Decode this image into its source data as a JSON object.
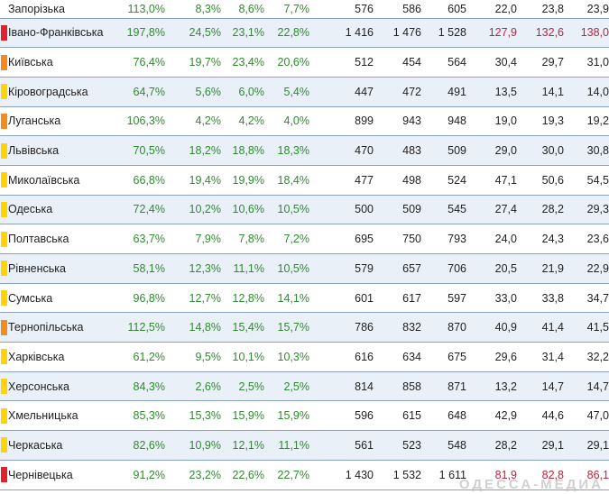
{
  "colors": {
    "red": "#e0202a",
    "orange": "#f28c1e",
    "yellow": "#ffd400"
  },
  "rows": [
    {
      "name": "Запорізька",
      "marker": "",
      "c1": "113,0%",
      "c2": "8,3%",
      "c3": "8,6%",
      "c4": "7,7%",
      "c5": "576",
      "c6": "586",
      "c7": "605",
      "c8": "22,0",
      "c9": "23,8",
      "c10": "23,9",
      "red": false
    },
    {
      "name": "Івано-Франківська",
      "marker": "red",
      "c1": "197,8%",
      "c2": "24,5%",
      "c3": "23,1%",
      "c4": "22,8%",
      "c5": "1 416",
      "c6": "1 476",
      "c7": "1 528",
      "c8": "127,9",
      "c9": "132,6",
      "c10": "138,0",
      "red": true
    },
    {
      "name": "Київська",
      "marker": "orange",
      "c1": "76,4%",
      "c2": "19,7%",
      "c3": "23,4%",
      "c4": "20,6%",
      "c5": "512",
      "c6": "454",
      "c7": "564",
      "c8": "30,4",
      "c9": "29,7",
      "c10": "31,0",
      "red": false
    },
    {
      "name": "Кіровоградська",
      "marker": "yellow",
      "c1": "64,7%",
      "c2": "5,6%",
      "c3": "6,0%",
      "c4": "5,4%",
      "c5": "447",
      "c6": "472",
      "c7": "491",
      "c8": "13,5",
      "c9": "14,1",
      "c10": "14,0",
      "red": false
    },
    {
      "name": "Луганська",
      "marker": "orange",
      "c1": "106,3%",
      "c2": "4,2%",
      "c3": "4,2%",
      "c4": "4,0%",
      "c5": "899",
      "c6": "943",
      "c7": "948",
      "c8": "19,0",
      "c9": "19,3",
      "c10": "19,2",
      "red": false
    },
    {
      "name": "Львівська",
      "marker": "yellow",
      "c1": "70,5%",
      "c2": "18,2%",
      "c3": "18,8%",
      "c4": "18,3%",
      "c5": "470",
      "c6": "483",
      "c7": "509",
      "c8": "29,0",
      "c9": "30,0",
      "c10": "30,8",
      "red": false
    },
    {
      "name": "Миколаївська",
      "marker": "yellow",
      "c1": "66,8%",
      "c2": "19,4%",
      "c3": "19,9%",
      "c4": "18,4%",
      "c5": "477",
      "c6": "498",
      "c7": "524",
      "c8": "47,1",
      "c9": "50,6",
      "c10": "54,5",
      "red": false
    },
    {
      "name": "Одеська",
      "marker": "yellow",
      "c1": "72,4%",
      "c2": "10,2%",
      "c3": "10,6%",
      "c4": "10,5%",
      "c5": "500",
      "c6": "509",
      "c7": "545",
      "c8": "27,4",
      "c9": "28,2",
      "c10": "29,3",
      "red": false
    },
    {
      "name": "Полтавська",
      "marker": "yellow",
      "c1": "63,7%",
      "c2": "7,9%",
      "c3": "7,8%",
      "c4": "7,2%",
      "c5": "695",
      "c6": "750",
      "c7": "793",
      "c8": "24,0",
      "c9": "24,3",
      "c10": "23,6",
      "red": false
    },
    {
      "name": "Рівненська",
      "marker": "yellow",
      "c1": "58,1%",
      "c2": "12,3%",
      "c3": "11,1%",
      "c4": "10,5%",
      "c5": "579",
      "c6": "657",
      "c7": "706",
      "c8": "20,5",
      "c9": "21,9",
      "c10": "22,9",
      "red": false
    },
    {
      "name": "Сумська",
      "marker": "yellow",
      "c1": "96,8%",
      "c2": "12,7%",
      "c3": "12,8%",
      "c4": "14,1%",
      "c5": "601",
      "c6": "617",
      "c7": "597",
      "c8": "33,0",
      "c9": "33,8",
      "c10": "34,7",
      "red": false
    },
    {
      "name": "Тернопільська",
      "marker": "orange",
      "c1": "112,5%",
      "c2": "14,8%",
      "c3": "15,4%",
      "c4": "15,7%",
      "c5": "786",
      "c6": "832",
      "c7": "870",
      "c8": "40,9",
      "c9": "41,4",
      "c10": "41,5",
      "red": false
    },
    {
      "name": "Харківська",
      "marker": "yellow",
      "c1": "61,2%",
      "c2": "9,5%",
      "c3": "10,1%",
      "c4": "10,3%",
      "c5": "616",
      "c6": "634",
      "c7": "675",
      "c8": "29,6",
      "c9": "31,4",
      "c10": "32,2",
      "red": false
    },
    {
      "name": "Херсонська",
      "marker": "yellow",
      "c1": "84,3%",
      "c2": "2,6%",
      "c3": "2,5%",
      "c4": "2,5%",
      "c5": "814",
      "c6": "858",
      "c7": "871",
      "c8": "13,2",
      "c9": "14,7",
      "c10": "14,7",
      "red": false
    },
    {
      "name": "Хмельницька",
      "marker": "yellow",
      "c1": "85,3%",
      "c2": "15,3%",
      "c3": "15,9%",
      "c4": "15,9%",
      "c5": "596",
      "c6": "615",
      "c7": "648",
      "c8": "42,9",
      "c9": "44,6",
      "c10": "47,0",
      "red": false
    },
    {
      "name": "Черкаська",
      "marker": "yellow",
      "c1": "82,6%",
      "c2": "10,9%",
      "c3": "12,1%",
      "c4": "11,1%",
      "c5": "561",
      "c6": "523",
      "c7": "548",
      "c8": "28,2",
      "c9": "29,1",
      "c10": "29,1",
      "red": false
    },
    {
      "name": "Чернівецька",
      "marker": "red",
      "c1": "91,2%",
      "c2": "23,2%",
      "c3": "22,6%",
      "c4": "22,7%",
      "c5": "1 430",
      "c6": "1 532",
      "c7": "1 611",
      "c8": "81,9",
      "c9": "82,8",
      "c10": "86,1",
      "red": true
    }
  ],
  "watermark": "ОДЕССА-МЕДИА"
}
